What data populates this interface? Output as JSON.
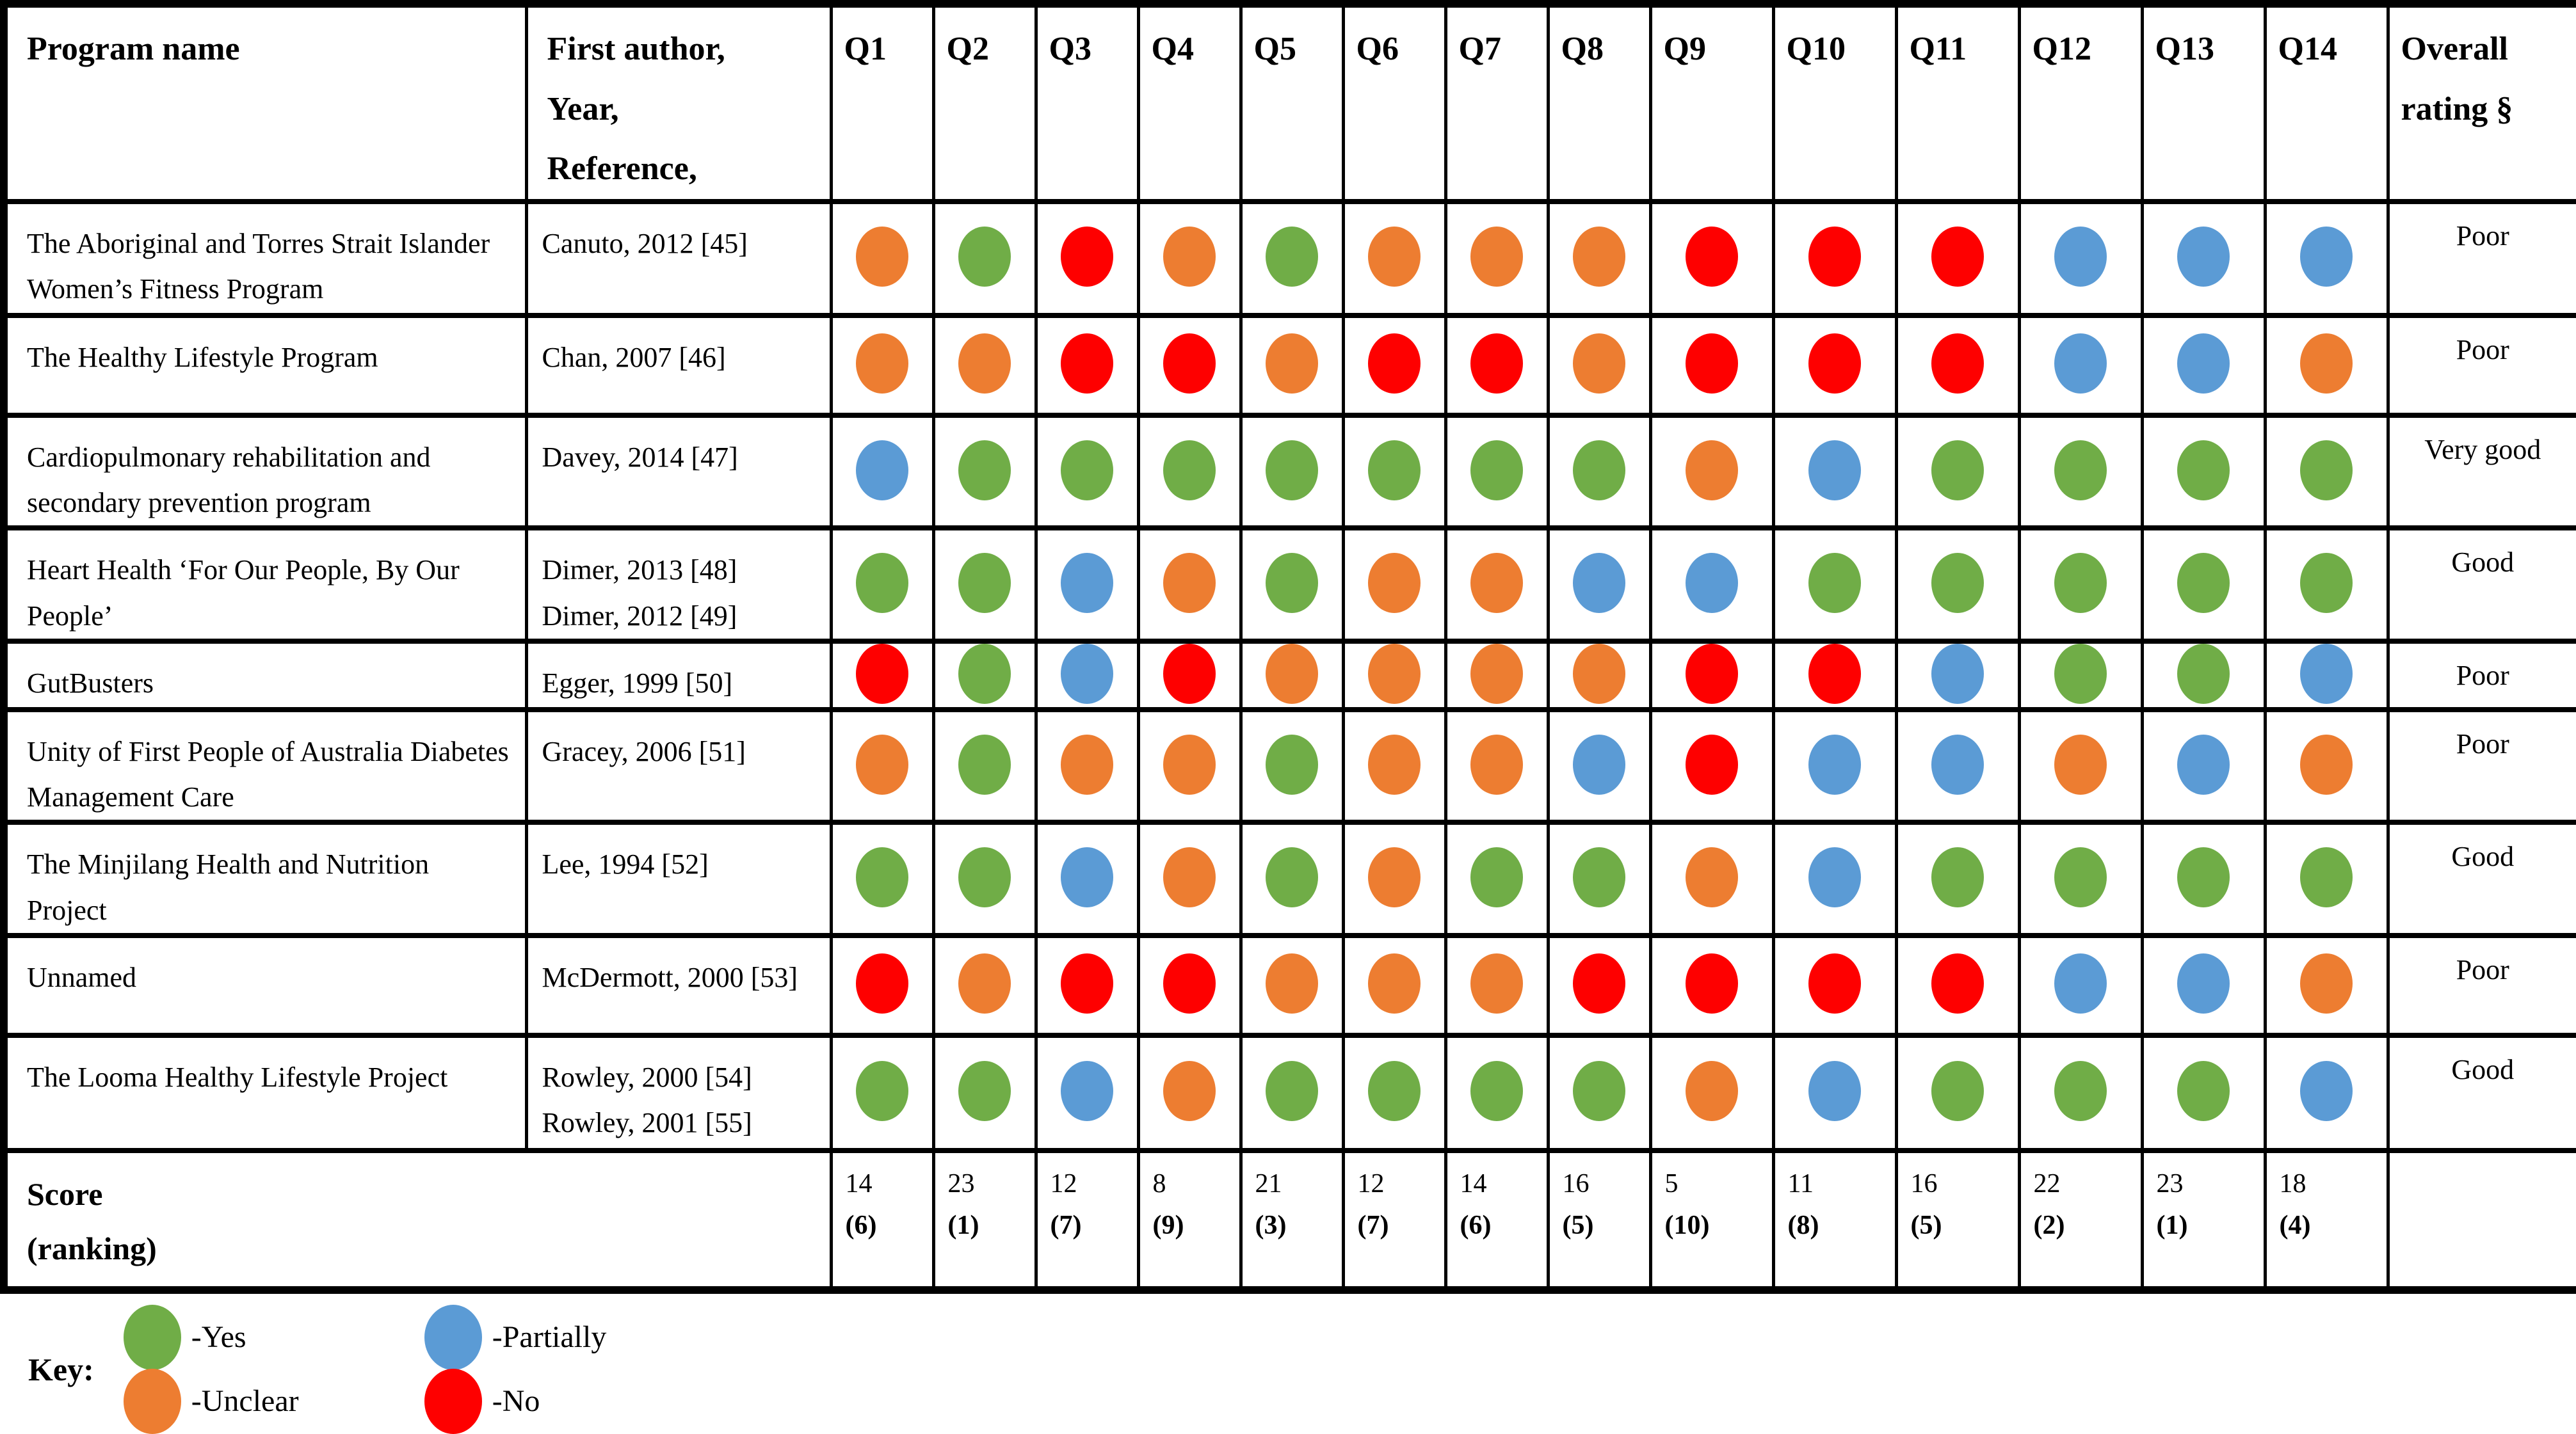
{
  "colors": {
    "yes": "#70AD47",
    "unclear": "#ED7D31",
    "partially": "#5B9BD5",
    "no": "#FE0000"
  },
  "header": {
    "program": "Program name",
    "author": "First author,\nYear,\nReference,",
    "questions": [
      "Q1",
      "Q2",
      "Q3",
      "Q4",
      "Q5",
      "Q6",
      "Q7",
      "Q8",
      "Q9",
      "Q10",
      "Q11",
      "Q12",
      "Q13",
      "Q14"
    ],
    "overall": "Overall rating §"
  },
  "rows": [
    {
      "program": "The Aboriginal and Torres Strait Islander Women’s Fitness Program",
      "author": [
        "Canuto, 2012 [45]"
      ],
      "ratings": [
        "unclear",
        "yes",
        "no",
        "unclear",
        "yes",
        "unclear",
        "unclear",
        "unclear",
        "no",
        "no",
        "no",
        "partially",
        "partially",
        "partially"
      ],
      "overall": "Poor"
    },
    {
      "program": "The Healthy Lifestyle Program",
      "author": [
        "Chan, 2007 [46]"
      ],
      "ratings": [
        "unclear",
        "unclear",
        "no",
        "no",
        "unclear",
        "no",
        "no",
        "unclear",
        "no",
        "no",
        "no",
        "partially",
        "partially",
        "unclear"
      ],
      "overall": "Poor"
    },
    {
      "program": "Cardiopulmonary rehabilitation and secondary prevention program",
      "author": [
        "Davey, 2014 [47]"
      ],
      "ratings": [
        "partially",
        "yes",
        "yes",
        "yes",
        "yes",
        "yes",
        "yes",
        "yes",
        "unclear",
        "partially",
        "yes",
        "yes",
        "yes",
        "yes"
      ],
      "overall": "Very good"
    },
    {
      "program": "Heart Health ‘For Our People, By Our People’",
      "author": [
        "Dimer, 2013 [48]",
        "Dimer, 2012 [49]"
      ],
      "ratings": [
        "yes",
        "yes",
        "partially",
        "unclear",
        "yes",
        "unclear",
        "unclear",
        "partially",
        "partially",
        "yes",
        "yes",
        "yes",
        "yes",
        "yes"
      ],
      "overall": "Good"
    },
    {
      "program": "GutBusters",
      "author": [
        "Egger, 1999 [50]"
      ],
      "ratings": [
        "no",
        "yes",
        "partially",
        "no",
        "unclear",
        "unclear",
        "unclear",
        "unclear",
        "no",
        "no",
        "partially",
        "yes",
        "yes",
        "partially"
      ],
      "overall": "Poor"
    },
    {
      "program": "Unity of First People of Australia Diabetes Management Care",
      "author": [
        "Gracey, 2006 [51]"
      ],
      "ratings": [
        "unclear",
        "yes",
        "unclear",
        "unclear",
        "yes",
        "unclear",
        "unclear",
        "partially",
        "no",
        "partially",
        "partially",
        "unclear",
        "partially",
        "unclear"
      ],
      "overall": "Poor"
    },
    {
      "program": "The Minjilang Health and Nutrition Project",
      "author": [
        "Lee, 1994 [52]"
      ],
      "ratings": [
        "yes",
        "yes",
        "partially",
        "unclear",
        "yes",
        "unclear",
        "yes",
        "yes",
        "unclear",
        "partially",
        "yes",
        "yes",
        "yes",
        "yes"
      ],
      "overall": "Good"
    },
    {
      "program": "Unnamed",
      "author": [
        "McDermott, 2000 [53]"
      ],
      "ratings": [
        "no",
        "unclear",
        "no",
        "no",
        "unclear",
        "unclear",
        "unclear",
        "no",
        "no",
        "no",
        "no",
        "partially",
        "partially",
        "unclear"
      ],
      "overall": "Poor"
    },
    {
      "program": "The Looma Healthy Lifestyle Project",
      "author": [
        "Rowley, 2000 [54]",
        "Rowley, 2001 [55]"
      ],
      "ratings": [
        "yes",
        "yes",
        "partially",
        "unclear",
        "yes",
        "yes",
        "yes",
        "yes",
        "unclear",
        "partially",
        "yes",
        "yes",
        "yes",
        "partially"
      ],
      "overall": "Good"
    }
  ],
  "score_row": {
    "label": "Score\n(ranking)",
    "scores": [
      "14",
      "23",
      "12",
      "8",
      "21",
      "12",
      "14",
      "16",
      "5",
      "11",
      "16",
      "22",
      "23",
      "18"
    ],
    "ranks": [
      "(6)",
      "(1)",
      "(7)",
      "(9)",
      "(3)",
      "(7)",
      "(6)",
      "(5)",
      "(10)",
      "(8)",
      "(5)",
      "(2)",
      "(1)",
      "(4)"
    ]
  },
  "key": {
    "label": "Key:",
    "items": [
      {
        "value": "yes",
        "label": "-Yes"
      },
      {
        "value": "partially",
        "label": "-Partially"
      },
      {
        "value": "unclear",
        "label": "-Unclear"
      },
      {
        "value": "no",
        "label": "-No"
      }
    ]
  }
}
